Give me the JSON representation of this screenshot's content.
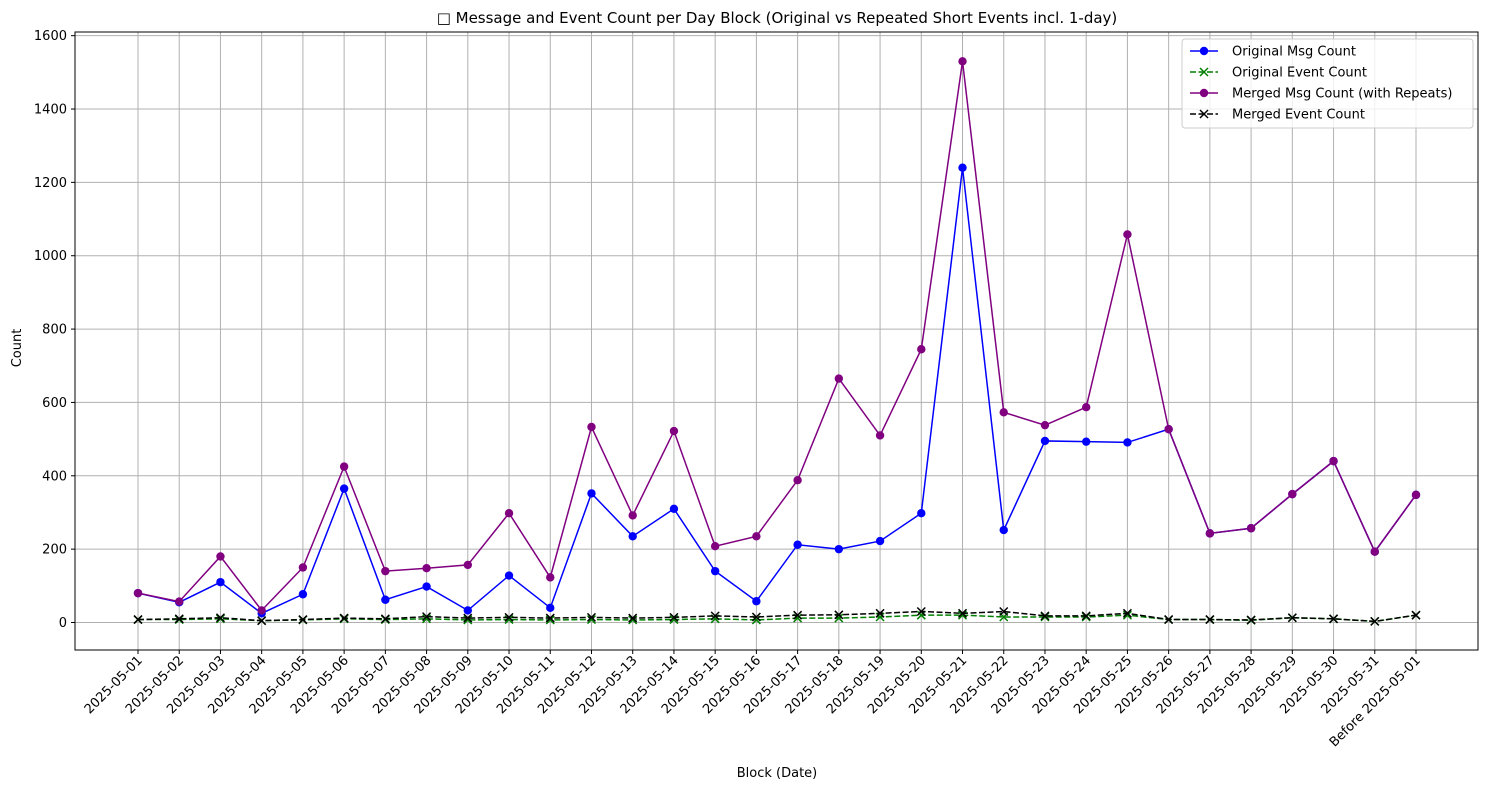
{
  "chart_data": {
    "type": "line",
    "title": "□ Message and Event Count per Day Block (Original vs Repeated Short Events incl. 1-day)",
    "xlabel": "Block (Date)",
    "ylabel": "Count",
    "ylim": [
      -75,
      1610
    ],
    "yticks": [
      0,
      200,
      400,
      600,
      800,
      1000,
      1200,
      1400,
      1600
    ],
    "grid": true,
    "legend_position": "top-right",
    "categories": [
      "2025-05-01",
      "2025-05-02",
      "2025-05-03",
      "2025-05-04",
      "2025-05-05",
      "2025-05-06",
      "2025-05-07",
      "2025-05-08",
      "2025-05-09",
      "2025-05-10",
      "2025-05-11",
      "2025-05-12",
      "2025-05-13",
      "2025-05-14",
      "2025-05-15",
      "2025-05-16",
      "2025-05-17",
      "2025-05-18",
      "2025-05-19",
      "2025-05-20",
      "2025-05-21",
      "2025-05-22",
      "2025-05-23",
      "2025-05-24",
      "2025-05-25",
      "2025-05-26",
      "2025-05-27",
      "2025-05-28",
      "2025-05-29",
      "2025-05-30",
      "2025-05-31",
      "Before 2025-05-01"
    ],
    "series": [
      {
        "name": "Original Msg Count",
        "color": "#0000ff",
        "line_style": "solid",
        "marker": "circle",
        "values": [
          80,
          55,
          110,
          25,
          77,
          365,
          62,
          98,
          33,
          128,
          40,
          352,
          235,
          310,
          140,
          58,
          212,
          200,
          222,
          298,
          1240,
          252,
          495,
          493,
          491,
          527,
          243,
          257,
          350,
          440,
          193,
          348
        ]
      },
      {
        "name": "Original Event Count",
        "color": "#008000",
        "line_style": "dashed",
        "marker": "x",
        "values": [
          8,
          8,
          10,
          5,
          7,
          10,
          8,
          10,
          7,
          8,
          7,
          8,
          7,
          8,
          10,
          7,
          12,
          12,
          15,
          20,
          20,
          15,
          15,
          15,
          20,
          8,
          8,
          6,
          13,
          10,
          3,
          20
        ]
      },
      {
        "name": "Merged Msg Count (with Repeats)",
        "color": "#800080",
        "line_style": "solid",
        "marker": "circle",
        "values": [
          80,
          57,
          180,
          33,
          150,
          425,
          140,
          148,
          157,
          298,
          123,
          533,
          292,
          522,
          208,
          235,
          388,
          665,
          510,
          745,
          1530,
          573,
          538,
          587,
          1058,
          527,
          243,
          257,
          350,
          440,
          193,
          348
        ]
      },
      {
        "name": "Merged Event Count",
        "color": "#000000",
        "line_style": "dashed",
        "marker": "x",
        "values": [
          8,
          10,
          13,
          5,
          8,
          12,
          10,
          16,
          12,
          14,
          12,
          14,
          12,
          14,
          18,
          15,
          20,
          21,
          25,
          30,
          25,
          30,
          18,
          18,
          25,
          8,
          8,
          7,
          13,
          10,
          3,
          20
        ]
      }
    ]
  }
}
